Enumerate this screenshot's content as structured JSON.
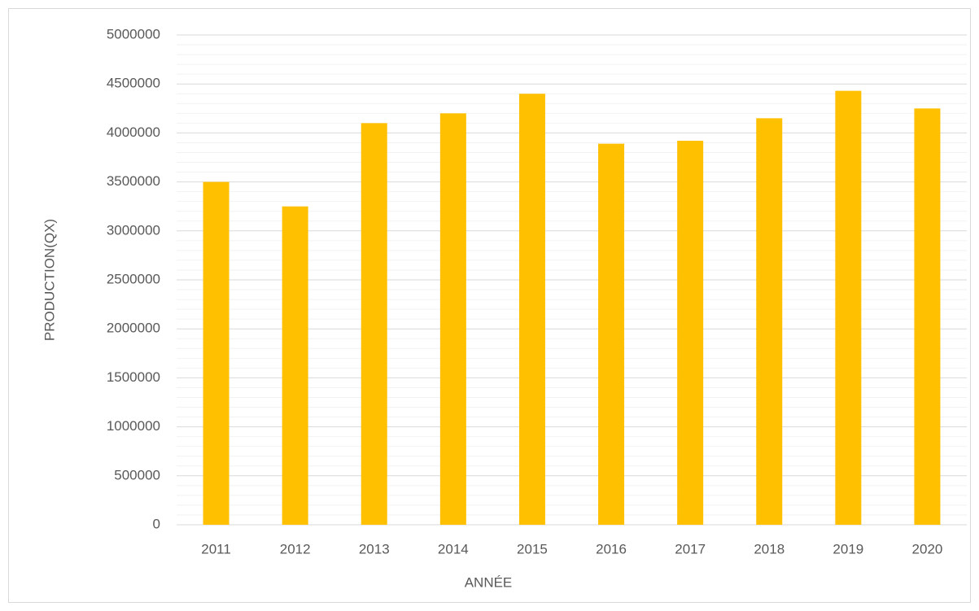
{
  "chart_data": {
    "type": "bar",
    "x_label": "ANNÉE",
    "y_label": "PRODUCTION(QX)",
    "categories": [
      "2011",
      "2012",
      "2013",
      "2014",
      "2015",
      "2016",
      "2017",
      "2018",
      "2019",
      "2020"
    ],
    "values": [
      3500000,
      3250000,
      4100000,
      4200000,
      4400000,
      3890000,
      3920000,
      4150000,
      4430000,
      4250000
    ],
    "color": "#ffc000",
    "ylim": [
      0,
      5000000
    ],
    "yticks": [
      0,
      500000,
      1000000,
      1500000,
      2000000,
      2500000,
      3000000,
      3500000,
      4000000,
      4500000,
      5000000
    ],
    "grid": true,
    "minor_grid": true
  }
}
